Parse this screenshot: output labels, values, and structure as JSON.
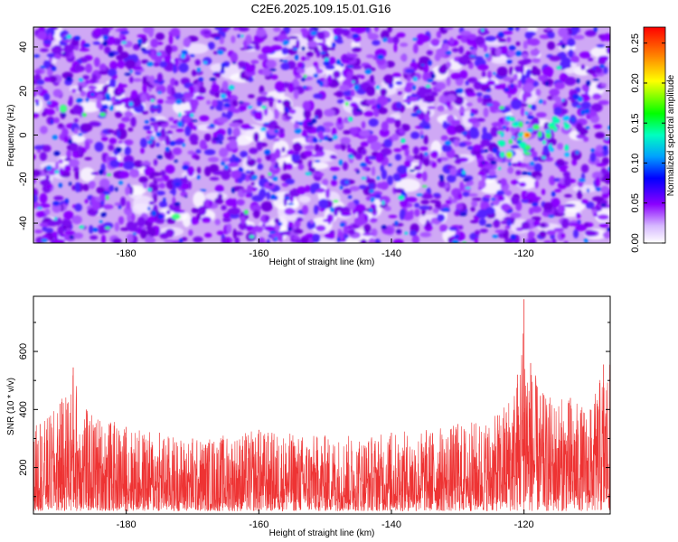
{
  "title": "C2E6.2025.109.15.01.G16",
  "chart_data": [
    {
      "type": "heatmap",
      "xlabel": "Height of straight line (km)",
      "ylabel": "Frequency (Hz)",
      "xlim": [
        -194,
        -107
      ],
      "ylim": [
        -49,
        49
      ],
      "x_ticks": [
        -180,
        -160,
        -140,
        -120
      ],
      "y_ticks": [
        -40,
        -20,
        0,
        20,
        40
      ],
      "colorbar": {
        "label": "Normalized spectral amplitude",
        "range": [
          0.0,
          0.27
        ],
        "ticks": [
          0.0,
          0.05,
          0.1,
          0.15,
          0.2,
          0.25
        ],
        "tick_labels": [
          "0.00",
          "0.05",
          "0.10",
          "0.15",
          "0.20",
          "0.25"
        ],
        "colors": [
          "#ffffff",
          "#8a00ff",
          "#0000ff",
          "#00a0ff",
          "#00ffaa",
          "#00ff00",
          "#ffff00",
          "#ff8000",
          "#ff0000"
        ]
      },
      "peak": {
        "x": -119.5,
        "y": 0,
        "value": 0.27
      }
    },
    {
      "type": "line",
      "xlabel": "Height of straight line (km)",
      "ylabel": "SNR (10 * v/v)",
      "xlim": [
        -194,
        -107
      ],
      "ylim": [
        40,
        790
      ],
      "x_ticks": [
        -180,
        -160,
        -140,
        -120
      ],
      "y_ticks": [
        200,
        400,
        600
      ],
      "series": [
        {
          "color": "#ee3333",
          "envelope": [
            {
              "x": -193,
              "y": 350
            },
            {
              "x": -190,
              "y": 420
            },
            {
              "x": -188,
              "y": 545
            },
            {
              "x": -186,
              "y": 400
            },
            {
              "x": -180,
              "y": 340
            },
            {
              "x": -175,
              "y": 320
            },
            {
              "x": -170,
              "y": 300
            },
            {
              "x": -160,
              "y": 330
            },
            {
              "x": -150,
              "y": 310
            },
            {
              "x": -140,
              "y": 320
            },
            {
              "x": -130,
              "y": 350
            },
            {
              "x": -124,
              "y": 380
            },
            {
              "x": -121,
              "y": 520
            },
            {
              "x": -120,
              "y": 780
            },
            {
              "x": -119,
              "y": 560
            },
            {
              "x": -117,
              "y": 450
            },
            {
              "x": -113,
              "y": 440
            },
            {
              "x": -110,
              "y": 400
            },
            {
              "x": -108,
              "y": 555
            }
          ],
          "typical_range": [
            80,
            300
          ]
        }
      ]
    }
  ]
}
